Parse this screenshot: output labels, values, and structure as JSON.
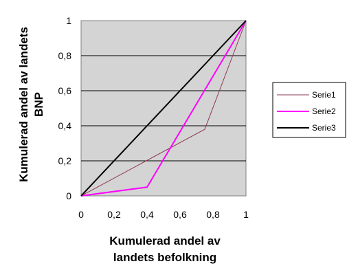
{
  "chart_data": {
    "type": "line",
    "x_label_lines": [
      "Kumulerad andel av",
      "landets befolkning"
    ],
    "y_label_lines": [
      "Kumulerad andel av landets",
      "BNP"
    ],
    "xlim": [
      0,
      1
    ],
    "ylim": [
      0,
      1
    ],
    "x_ticks": [
      "0",
      "0,2",
      "0,4",
      "0,6",
      "0,8",
      "1"
    ],
    "y_ticks": [
      "0",
      "0,2",
      "0,4",
      "0,6",
      "0,8",
      "1"
    ],
    "grid": "horizontal",
    "plot_background": "#d4d4d4",
    "legend_position": "right",
    "series": [
      {
        "name": "Serie1",
        "color": "#8b3a52",
        "x": [
          0,
          0.75,
          1
        ],
        "y": [
          0,
          0.38,
          1
        ]
      },
      {
        "name": "Serie2",
        "color": "#ff00ff",
        "x": [
          0,
          0.4,
          1
        ],
        "y": [
          0,
          0.05,
          1
        ]
      },
      {
        "name": "Serie3",
        "color": "#000000",
        "x": [
          0,
          1
        ],
        "y": [
          0,
          1
        ]
      }
    ]
  }
}
